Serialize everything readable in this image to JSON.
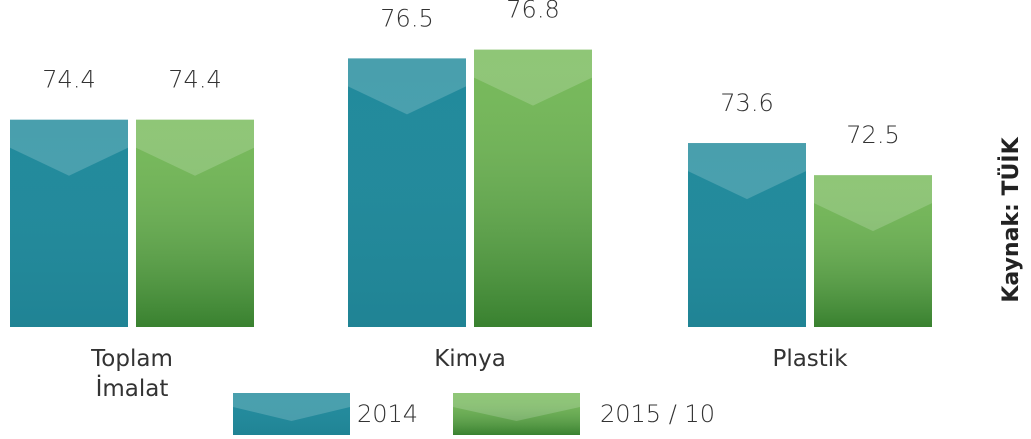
{
  "chart_data": {
    "type": "bar",
    "categories": [
      "Toplam İmalat",
      "Kimya",
      "Plastik"
    ],
    "series": [
      {
        "name": "2014",
        "color": "#218a9c",
        "values": [
          74.4,
          76.5,
          73.6
        ]
      },
      {
        "name": "2015 / 10",
        "color": "#5fae3c",
        "values": [
          74.4,
          76.8,
          72.5
        ]
      }
    ],
    "ylim": [
      67.3,
      78.5
    ],
    "source": "Kaynak: TÜİK"
  }
}
